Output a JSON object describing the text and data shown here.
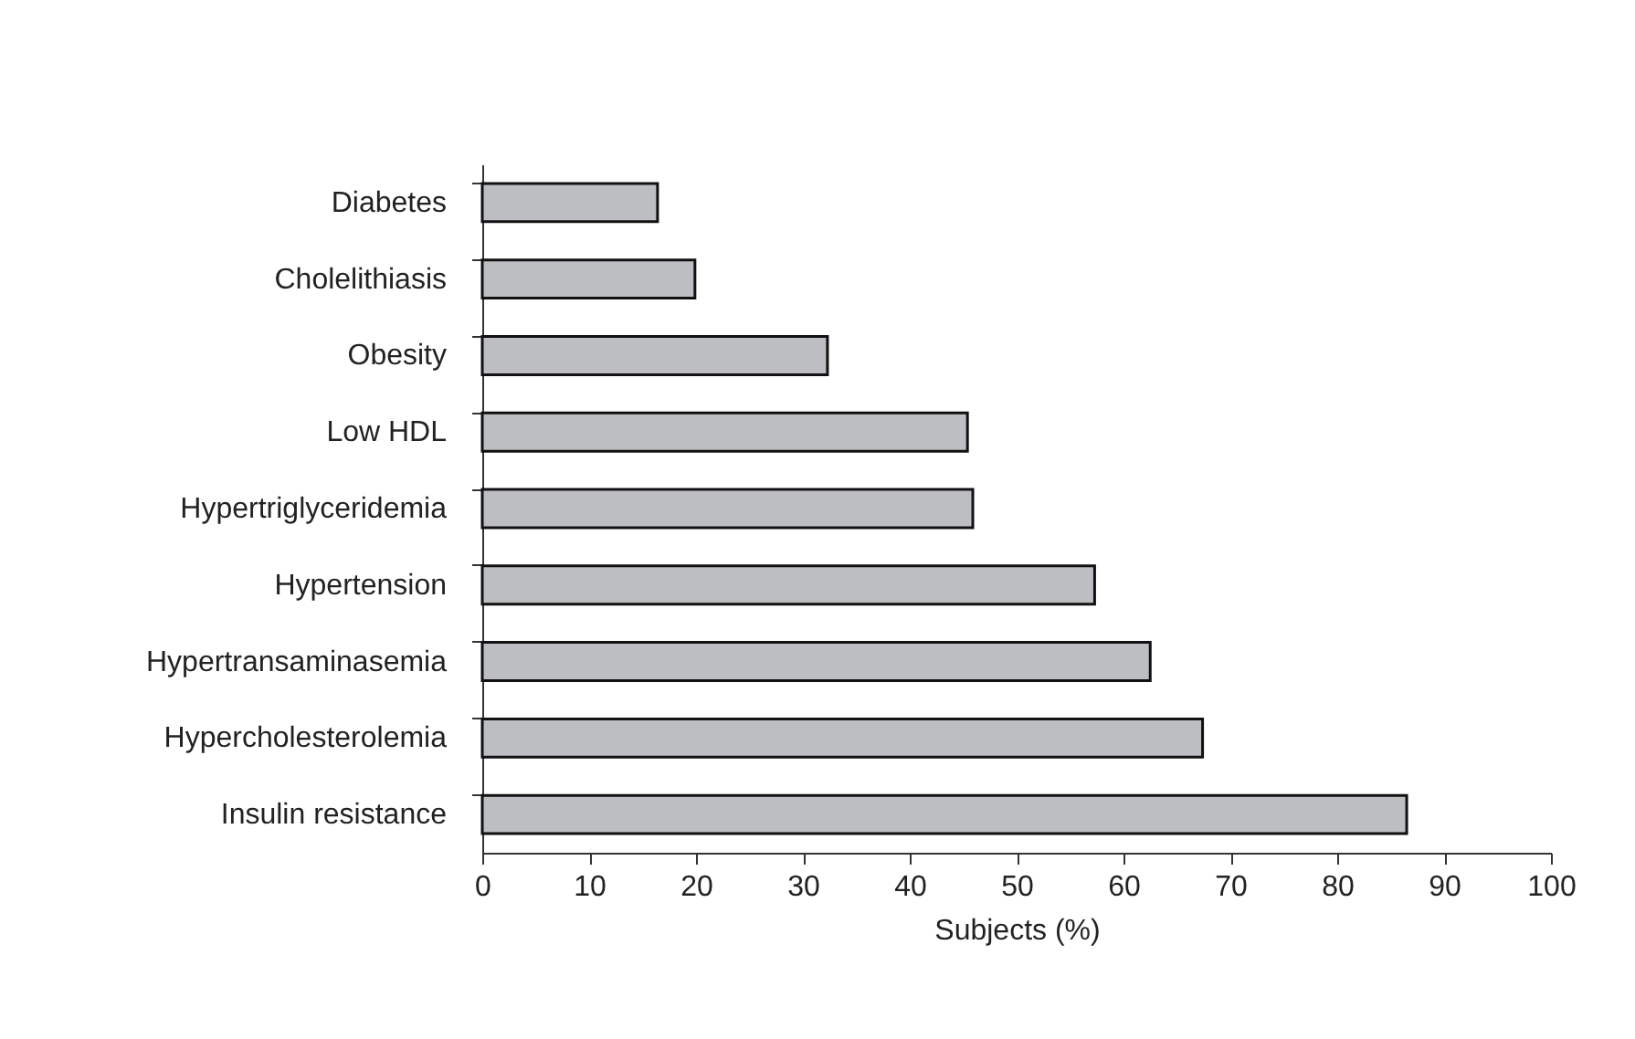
{
  "chart_data": {
    "type": "bar",
    "orientation": "horizontal",
    "xlabel": "Subjects (%)",
    "categories": [
      "Diabetes",
      "Cholelithiasis",
      "Obesity",
      "Low HDL",
      "Hypertriglyceridemia",
      "Hypertension",
      "Hypertransaminasemia",
      "Hypercholesterolemia",
      "Insulin resistance"
    ],
    "values": [
      16.4,
      19.9,
      32.3,
      45.4,
      45.9,
      57.3,
      62.5,
      67.4,
      86.5
    ],
    "color": "#bdbec2",
    "xlim": [
      0,
      100
    ],
    "xticks": [
      0,
      10,
      20,
      30,
      40,
      50,
      60,
      70,
      80,
      90,
      100
    ],
    "grid": false
  }
}
